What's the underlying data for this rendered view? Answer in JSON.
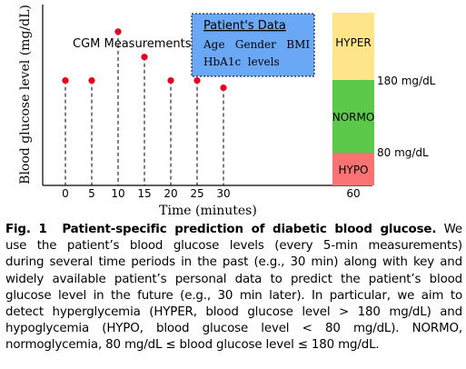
{
  "chart_data": {
    "type": "scatter",
    "title": "",
    "xlabel": "Time (minutes)",
    "ylabel": "Blood glucose level (mg/dL)",
    "series": [
      {
        "name": "CGM Measurements",
        "x": [
          0,
          5,
          10,
          15,
          20,
          25,
          30
        ],
        "y": [
          0.58,
          0.58,
          0.85,
          0.71,
          0.58,
          0.58,
          0.54
        ]
      }
    ],
    "x_ticks": [
      "0",
      "5",
      "10",
      "15",
      "20",
      "25",
      "30"
    ],
    "prediction_tick": "60",
    "grid": false,
    "stems": true,
    "point_color": "#e8001c",
    "zones": [
      {
        "label": "HYPER",
        "color": "#ffe58a",
        "from": 180
      },
      {
        "label": "NORMO",
        "color": "#5cc84a",
        "from": 80,
        "to": 180
      },
      {
        "label": "HYPO",
        "color": "#f97373",
        "to": 80
      }
    ],
    "zone_thresholds": [
      "180 mg/dL",
      "80 mg/dL"
    ],
    "patient_box": {
      "title": "Patient's Data",
      "line1": "Age   Gender   BMI",
      "line2": "HbA1c  levels",
      "color": "#6aa7f5"
    }
  },
  "caption": {
    "label": "Fig. 1",
    "bold_title": "Patient-specific prediction of diabetic blood glucose.",
    "lines": [
      "We",
      "use the patient’s blood glucose levels (every 5-min measurements)",
      "during several time periods in the past (e.g., 30 min) along with key and",
      "widely available patient’s personal data to predict the patient’s blood",
      "glucose level in the future (e.g., 30 min later). In particular, we aim to",
      "detect hyperglycemia (HYPER, blood glucose level > 180 mg/dL) and",
      "hypoglycemia (HYPO, blood glucose level < 80 mg/dL). NORMO,",
      "normoglycemia, 80 mg/dL ≤ blood glucose level ≤ 180 mg/dL."
    ]
  }
}
